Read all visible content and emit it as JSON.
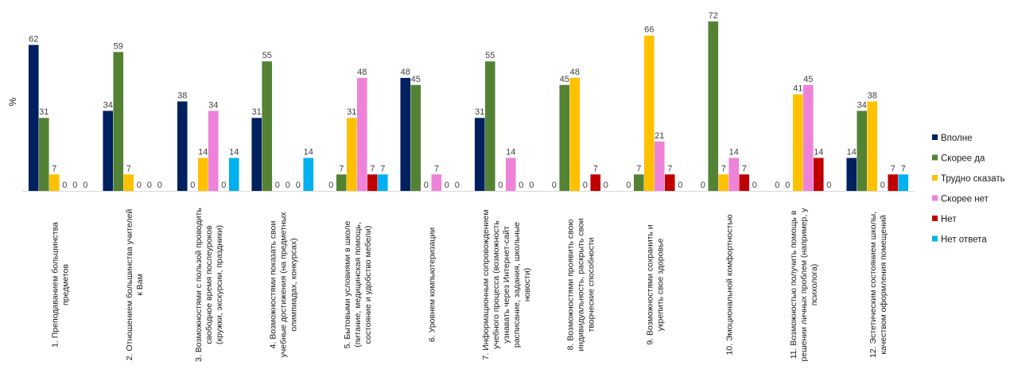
{
  "chart_data": {
    "type": "bar",
    "ylabel": "%",
    "ylim": [
      0,
      75
    ],
    "grid": false,
    "legend_position": "right",
    "categories": [
      [
        "1. Преподаванием большинства",
        "предметов"
      ],
      [
        "2. Отношением большинства учителей",
        "к Вам"
      ],
      [
        "3. Возможностями с пользой проводить",
        "свободное время послеуроков",
        "(кружки, экскурсии, праздники)"
      ],
      [
        "4. Возможностями показать свои",
        "учебные достижения (на предметных",
        "олимпиадах, конкурсах)"
      ],
      [
        "5. Бытовыми условиями в школе",
        "(питание, медицинская помощь,",
        "состояние и удобство мебели)"
      ],
      [
        "6. Уровнем компьютеризации"
      ],
      [
        "7. Информационным сопровождением",
        "учебного процесса (возможность",
        "узнавать через Интернет-сайт",
        "расписание, задания, школьные",
        "новости)"
      ],
      [
        "8. Возможностями проявить свою",
        "индивидуальность, раскрыть свои",
        "творческие способности"
      ],
      [
        "9. Возможностями сохранить и",
        "укрепить свое здоровье"
      ],
      [
        "10. Эмоциональной комфортностью"
      ],
      [
        "11. Возможностью получить помощь в",
        "решении личных проблем (например, у",
        "психолога)"
      ],
      [
        "12. Эстетическим состоянием школы,",
        "качеством оформления помещений"
      ]
    ],
    "series": [
      {
        "name": "Вполне",
        "color": "#002060",
        "values": [
          62,
          34,
          38,
          31,
          0,
          48,
          31,
          0,
          0,
          0,
          0,
          14
        ]
      },
      {
        "name": "Скорее да",
        "color": "#548235",
        "values": [
          31,
          59,
          0,
          55,
          7,
          45,
          55,
          45,
          7,
          72,
          0,
          34
        ]
      },
      {
        "name": "Трудно сказать",
        "color": "#FFC000",
        "values": [
          7,
          7,
          14,
          0,
          31,
          0,
          0,
          48,
          66,
          7,
          41,
          38
        ]
      },
      {
        "name": "Скорее нет",
        "color": "#EE82D8",
        "values": [
          0,
          0,
          34,
          0,
          48,
          7,
          14,
          0,
          21,
          14,
          45,
          0
        ]
      },
      {
        "name": "Нет",
        "color": "#C00000",
        "values": [
          0,
          0,
          0,
          0,
          7,
          0,
          0,
          7,
          7,
          7,
          14,
          7
        ]
      },
      {
        "name": "Нет ответа",
        "color": "#00B0F0",
        "values": [
          0,
          0,
          14,
          14,
          7,
          0,
          0,
          0,
          0,
          0,
          0,
          7
        ]
      }
    ]
  }
}
